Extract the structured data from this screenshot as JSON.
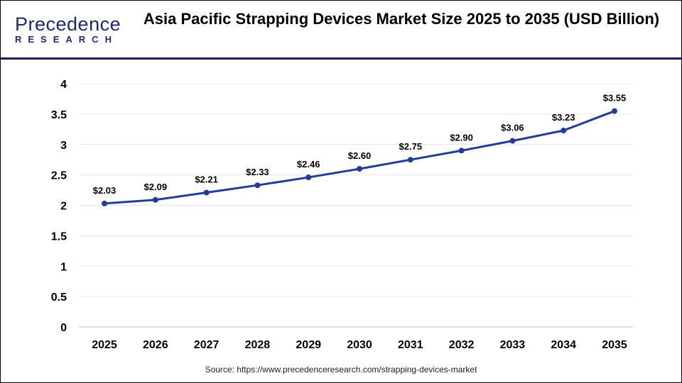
{
  "logo": {
    "line1": "Precedence",
    "line2": "RESEARCH"
  },
  "title": "Asia Pacific Strapping Devices Market Size 2025 to 2035 (USD Billion)",
  "source": "Source: https://www.precedenceresearch.com/strapping-devices-market",
  "colors": {
    "line": "#1f3d99",
    "header_rule": "#1b1f4a",
    "grid": "#e6e6e6"
  },
  "chart_data": {
    "type": "line",
    "title": "Asia Pacific Strapping Devices Market Size 2025 to 2035 (USD Billion)",
    "categories": [
      "2025",
      "2026",
      "2027",
      "2028",
      "2029",
      "2030",
      "2031",
      "2032",
      "2033",
      "2034",
      "2035"
    ],
    "values": [
      2.03,
      2.09,
      2.21,
      2.33,
      2.46,
      2.6,
      2.75,
      2.9,
      3.06,
      3.23,
      3.55
    ],
    "data_labels": [
      "$2.03",
      "$2.09",
      "$2.21",
      "$2.33",
      "$2.46",
      "$2.60",
      "$2.75",
      "$2.90",
      "$3.06",
      "$3.23",
      "$3.55"
    ],
    "ylim": [
      0,
      4
    ],
    "yticks": [
      "0",
      "0.5",
      "1",
      "1.5",
      "2",
      "2.5",
      "3",
      "3.5",
      "4"
    ],
    "grid": true,
    "legend": "none"
  }
}
